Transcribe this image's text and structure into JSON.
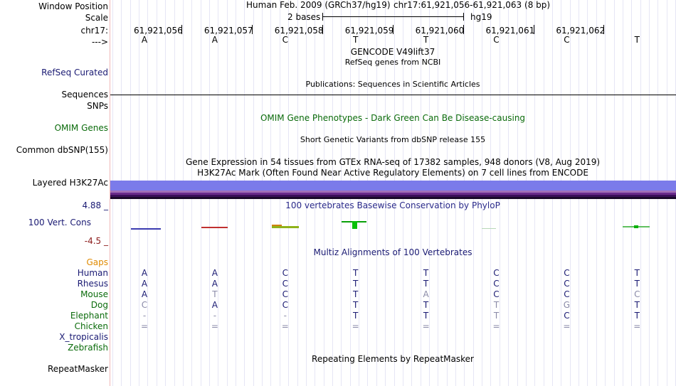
{
  "header": {
    "window_position_label": "Window Position",
    "assembly": "Human Feb. 2009 (GRCh37/hg19)",
    "position": "chr17:61,921,056-61,921,063 (8 bp)",
    "scale_label": "Scale",
    "scale_text": "2 bases",
    "scale_db": "hg19",
    "chrom_label": "chr17:",
    "strand_label": "--->",
    "coordinates": [
      "61,921,056",
      "61,921,057",
      "61,921,058",
      "61,921,059",
      "61,921,060",
      "61,921,061",
      "61,921,062"
    ],
    "bases": [
      "A",
      "A",
      "C",
      "T",
      "T",
      "C",
      "C",
      "T"
    ]
  },
  "tracks": {
    "gencode_title": "GENCODE V49lift37",
    "refseq_subtitle": "RefSeq genes from NCBI",
    "refseq_label": "RefSeq Curated",
    "publications_title": "Publications: Sequences in Scientific Articles",
    "sequences_label": "Sequences",
    "snps_label": "SNPs",
    "omim_title": "OMIM Gene Phenotypes - Dark Green Can Be Disease-causing",
    "omim_label": "OMIM Genes",
    "dbsnp_title": "Short Genetic Variants from dbSNP release 155",
    "dbsnp_label": "Common dbSNP(155)",
    "gtex_title": "Gene Expression in 54 tissues from GTEx RNA-seq of 17382 samples, 948 donors (V8, Aug 2019)",
    "h3k27_title": "H3K27Ac Mark (Often Found Near Active Regulatory Elements) on 7 cell lines from ENCODE",
    "h3k27_label": "Layered H3K27Ac",
    "cons_max": "4.88 _",
    "cons_title": "100 vertebrates Basewise Conservation by PhyloP",
    "cons_label": "100 Vert. Cons",
    "cons_min": "-4.5 _",
    "multiz_title": "Multiz Alignments of 100 Vertebrates",
    "gaps_label": "Gaps",
    "repeat_title": "Repeating Elements by RepeatMasker",
    "repeat_label": "RepeatMasker"
  },
  "colors": {
    "label_navy": "#1a1a73",
    "label_green": "#0b6b0b",
    "gaps_orange": "#e08a00",
    "h3k27_band": "#7b7bea",
    "cons_max_color": "#1a1a73",
    "cons_min_color": "#8b1a1a"
  },
  "alignment": {
    "species": [
      {
        "name": "Human",
        "color": "#1a1a73",
        "bases": [
          "A",
          "A",
          "C",
          "T",
          "T",
          "C",
          "C",
          "T"
        ]
      },
      {
        "name": "Rhesus",
        "color": "#1a1a73",
        "bases": [
          "A",
          "A",
          "C",
          "T",
          "T",
          "C",
          "C",
          "T"
        ]
      },
      {
        "name": "Mouse",
        "color": "#0b6b0b",
        "bases": [
          "A",
          "T",
          "C",
          "T",
          "A",
          "C",
          "C",
          "C"
        ]
      },
      {
        "name": "Dog",
        "color": "#0b6b0b",
        "bases": [
          "C",
          "A",
          "C",
          "T",
          "T",
          "T",
          "G",
          "T"
        ]
      },
      {
        "name": "Elephant",
        "color": "#0b6b0b",
        "bases": [
          "-",
          "-",
          "-",
          "T",
          "T",
          "T",
          "C",
          "T"
        ]
      },
      {
        "name": "Chicken",
        "color": "#0b6b0b",
        "bases": [
          "=",
          "=",
          "=",
          "=",
          "=",
          "=",
          "=",
          "="
        ]
      },
      {
        "name": "X_tropicalis",
        "color": "#1a1a73",
        "bases": [
          "",
          "",
          "",
          "",
          "",
          "",
          "",
          ""
        ]
      },
      {
        "name": "Zebrafish",
        "color": "#0b6b0b",
        "bases": [
          "",
          "",
          "",
          "",
          "",
          "",
          "",
          ""
        ]
      }
    ],
    "light_cells": [
      [
        false,
        false,
        false,
        false,
        false,
        false,
        false,
        false
      ],
      [
        false,
        false,
        false,
        false,
        false,
        false,
        false,
        false
      ],
      [
        false,
        true,
        false,
        false,
        true,
        false,
        false,
        true
      ],
      [
        true,
        false,
        false,
        false,
        false,
        true,
        true,
        false
      ],
      [
        true,
        true,
        true,
        false,
        false,
        true,
        false,
        false
      ],
      [
        true,
        true,
        true,
        true,
        true,
        true,
        true,
        true
      ],
      [
        false,
        false,
        false,
        false,
        false,
        false,
        false,
        false
      ],
      [
        false,
        false,
        false,
        false,
        false,
        false,
        false,
        false
      ]
    ]
  }
}
